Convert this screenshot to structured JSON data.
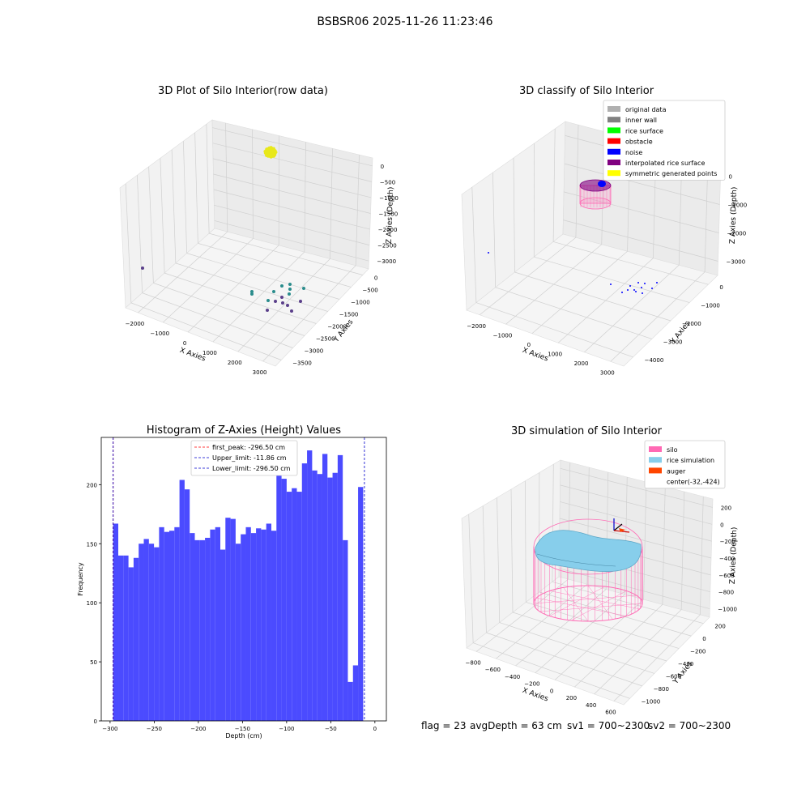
{
  "figure": {
    "suptitle": "BSBSR06 2025-11-26 11:23:46",
    "footer": {
      "flag": "flag = 23",
      "avg_depth": "avgDepth = 63 cm",
      "sv1": "sv1 = 700~2300",
      "sv2": "sv2 = 700~2300"
    }
  },
  "colors": {
    "point_yellow": "#e8e81a",
    "point_teal": "#2a8c8c",
    "point_purple": "#5a3f8a",
    "hist_fill": "#4b4bff",
    "first_peak_line": "#ff0000",
    "limit_line": "#0000cc",
    "silo_pink": "#ff69b4",
    "rice_blue": "#87ceeb",
    "auger_orange": "#ff4500",
    "interp_purple": "#800080",
    "noise_blue": "#0000ff",
    "pane": "#f2f2f2"
  },
  "chart_data": [
    {
      "type": "scatter",
      "title": "3D Plot of Silo Interior(row data)",
      "xlabel": "X Axies",
      "ylabel": "Y Axies",
      "zlabel": "Z Axies (Depth)",
      "x_ticks": [
        "−2000",
        "−1000",
        "0",
        "1000",
        "2000",
        "3000"
      ],
      "y_ticks": [
        "0",
        "−500",
        "−1000",
        "−1500",
        "−2000",
        "−2500",
        "−3000",
        "−3500"
      ],
      "z_ticks": [
        "0",
        "−500",
        "−1000",
        "−1500",
        "−2000",
        "−2500",
        "−3000"
      ]
    },
    {
      "type": "scatter",
      "title": "3D classify of Silo Interior",
      "xlabel": "X Axies",
      "ylabel": "Y Axies",
      "zlabel": "Z Axies (Depth)",
      "x_ticks": [
        "−2000",
        "−1000",
        "0",
        "1000",
        "2000",
        "3000"
      ],
      "y_ticks": [
        "0",
        "−1000",
        "−2000",
        "−3000",
        "−4000"
      ],
      "z_ticks": [
        "0",
        "−1000",
        "−2000",
        "−3000"
      ],
      "legend_position": "top-right",
      "legend": [
        {
          "label": "original data",
          "color": "#b0b0b0"
        },
        {
          "label": "inner wall",
          "color": "#808080"
        },
        {
          "label": "rice surface",
          "color": "#00ff00"
        },
        {
          "label": "obstacle",
          "color": "#ff0000"
        },
        {
          "label": "noise",
          "color": "#0000ff"
        },
        {
          "label": "interpolated rice surface",
          "color": "#800080"
        },
        {
          "label": "symmetric generated points",
          "color": "#ffff00"
        }
      ]
    },
    {
      "type": "bar",
      "title": "Histogram of Z-Axies (Height) Values",
      "xlabel": "Depth (cm)",
      "ylabel": "Frequency",
      "xlim": [
        -310,
        13
      ],
      "ylim": [
        0,
        240
      ],
      "x_ticks": [
        -300,
        -250,
        -200,
        -150,
        -100,
        -50,
        0
      ],
      "y_ticks": [
        0,
        50,
        100,
        150,
        200
      ],
      "bin_start": -296.5,
      "bin_width": 5.78,
      "values": [
        167,
        140,
        140,
        130,
        138,
        150,
        154,
        150,
        147,
        164,
        160,
        161,
        164,
        204,
        196,
        159,
        153,
        153,
        155,
        162,
        164,
        145,
        172,
        171,
        150,
        158,
        164,
        159,
        163,
        162,
        167,
        161,
        223,
        205,
        194,
        197,
        194,
        218,
        229,
        212,
        209,
        226,
        206,
        210,
        225,
        153,
        33,
        47,
        198
      ],
      "legend_position": "top-center",
      "vlines": [
        {
          "label": "first_peak: -296.50 cm",
          "x": -296.5,
          "color": "#ff0000"
        },
        {
          "label": "Upper_limit: -11.86 cm",
          "x": -11.86,
          "color": "#0000cc"
        },
        {
          "label": "Lower_limit: -296.50 cm",
          "x": -296.5,
          "color": "#0000cc"
        }
      ]
    },
    {
      "type": "scatter",
      "title": "3D simulation of Silo Interior",
      "xlabel": "X Axies",
      "ylabel": "Y Axies",
      "zlabel": "Z Axies (Depth)",
      "x_ticks": [
        "−800",
        "−600",
        "−400",
        "−200",
        "0",
        "200",
        "400",
        "600"
      ],
      "y_ticks": [
        "200",
        "0",
        "−200",
        "−400",
        "−600",
        "−800",
        "−1000"
      ],
      "z_ticks": [
        "200",
        "0",
        "−200",
        "−400",
        "−600",
        "−800",
        "−1000"
      ],
      "legend_position": "top-right",
      "legend": [
        {
          "label": "silo",
          "color": "#ff69b4"
        },
        {
          "label": "rice simulation",
          "color": "#87ceeb"
        },
        {
          "label": "auger",
          "color": "#ff4500"
        },
        {
          "label": "center(-32,-424)",
          "color": ""
        }
      ]
    }
  ]
}
